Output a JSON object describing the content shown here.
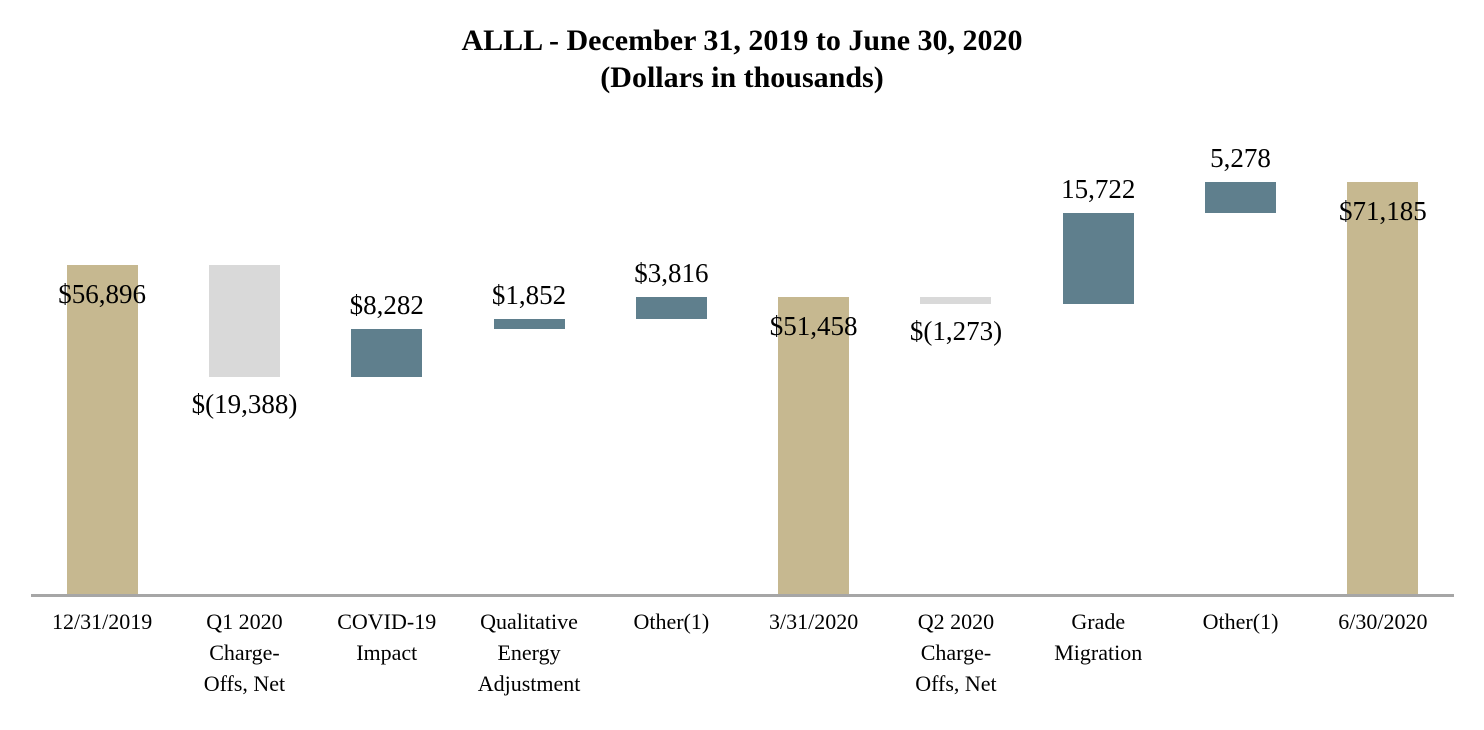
{
  "title": {
    "line1": "ALLL - December 31, 2019 to June 30, 2020",
    "line2": "(Dollars in thousands)"
  },
  "colors": {
    "total": "#C6B890",
    "negative": "#D9D9D9",
    "positive": "#5F7F8D",
    "axis_line": "#A6A6A6",
    "text": "#000000"
  },
  "chart_data": {
    "type": "bar",
    "subtype": "waterfall",
    "title": "ALLL - December 31, 2019 to June 30, 2020 (Dollars in thousands)",
    "categories": [
      "12/31/2019",
      "Q1 2020 Charge-Offs, Net",
      "COVID-19 Impact",
      "Qualitative Energy Adjustment",
      "Other(1)",
      "3/31/2020",
      "Q2 2020 Charge-Offs, Net",
      "Grade Migration",
      "Other(1)",
      "6/30/2020"
    ],
    "values": [
      56896,
      -19388,
      8282,
      1852,
      3816,
      51458,
      -1273,
      15722,
      5278,
      71185
    ],
    "cumulative": [
      56896,
      37508,
      45790,
      47642,
      51458,
      51458,
      50185,
      65907,
      71185,
      71185
    ],
    "bars": [
      {
        "label_lines": [
          "12/31/2019"
        ],
        "value": 56896,
        "display": "$56,896",
        "kind": "total",
        "label_pos": "inside-top"
      },
      {
        "label_lines": [
          "Q1 2020",
          "Charge-",
          "Offs, Net"
        ],
        "value": -19388,
        "display": "$(19,388)",
        "kind": "negative",
        "label_pos": "below"
      },
      {
        "label_lines": [
          "COVID-19",
          "Impact"
        ],
        "value": 8282,
        "display": "$8,282",
        "kind": "positive",
        "label_pos": "above"
      },
      {
        "label_lines": [
          "Qualitative",
          "Energy",
          "Adjustment"
        ],
        "value": 1852,
        "display": "$1,852",
        "kind": "positive",
        "label_pos": "above"
      },
      {
        "label_lines": [
          "Other(1)"
        ],
        "value": 3816,
        "display": "$3,816",
        "kind": "positive",
        "label_pos": "above"
      },
      {
        "label_lines": [
          "3/31/2020"
        ],
        "value": 51458,
        "display": "$51,458",
        "kind": "total",
        "label_pos": "inside-top"
      },
      {
        "label_lines": [
          "Q2 2020",
          "Charge-",
          "Offs, Net"
        ],
        "value": -1273,
        "display": "$(1,273)",
        "kind": "negative",
        "label_pos": "below"
      },
      {
        "label_lines": [
          "Grade",
          "Migration"
        ],
        "value": 15722,
        "display": "15,722",
        "kind": "positive",
        "label_pos": "above"
      },
      {
        "label_lines": [
          "Other(1)"
        ],
        "value": 5278,
        "display": "5,278",
        "kind": "positive",
        "label_pos": "above"
      },
      {
        "label_lines": [
          "6/30/2020"
        ],
        "value": 71185,
        "display": "$71,185",
        "kind": "total",
        "label_pos": "inside-top"
      }
    ],
    "axis": {
      "ylim": [
        0,
        75000
      ],
      "gridlines": false,
      "legend": false,
      "y_axis_visible": false,
      "x_axis_line": true
    }
  }
}
